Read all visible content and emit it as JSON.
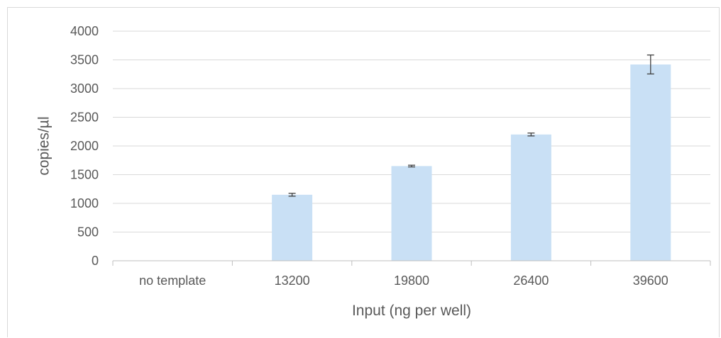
{
  "chart_data": {
    "type": "bar",
    "title": "",
    "xlabel": "Input (ng per well)",
    "ylabel": "copies/µl",
    "categories": [
      "no template",
      "13200",
      "19800",
      "26400",
      "39600"
    ],
    "values": [
      0,
      1150,
      1650,
      2200,
      3420
    ],
    "error": [
      0,
      25,
      15,
      25,
      165
    ],
    "ylim": [
      0,
      4000
    ],
    "yticks": [
      0,
      500,
      1000,
      1500,
      2000,
      2500,
      3000,
      3500,
      4000
    ],
    "ytick_labels": [
      "0",
      "500",
      "1000",
      "1500",
      "2000",
      "2500",
      "3000",
      "3500",
      "4000"
    ],
    "grid": true,
    "legend": "none",
    "colors": {
      "bar": "#c9e0f5",
      "grid": "#d9d9d9",
      "axis": "#bfbfbf",
      "error": "#404040",
      "text": "#595959"
    }
  }
}
